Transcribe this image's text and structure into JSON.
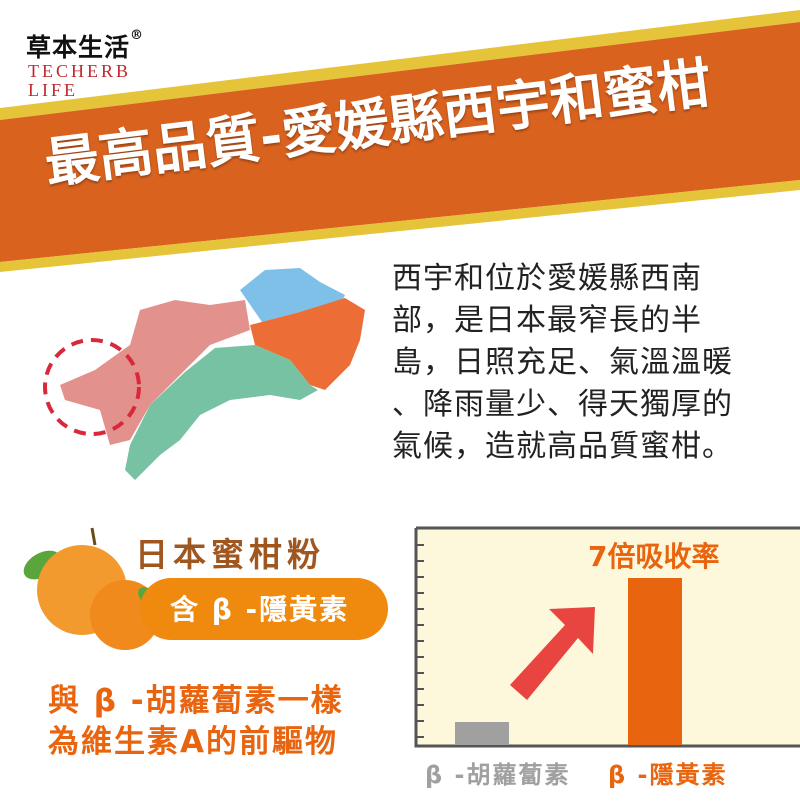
{
  "logo": {
    "chinese": "草本生活",
    "registered": "®",
    "english_line1": "TECHERB",
    "english_line2": "LIFE"
  },
  "banner": {
    "title": "最高品質-愛媛縣西宇和蜜柑",
    "color": "#d9621f",
    "border_color": "#e6c43a"
  },
  "description": [
    "西宇和位於愛媛縣西南",
    "部，是日本最窄長的半",
    "島，日照充足、氣溫溫暖",
    "、降雨量少、得天獨厚的",
    "氣候，造就高品質蜜柑。"
  ],
  "product": {
    "title": "日本蜜柑粉",
    "pill": "含 β -隱黃素",
    "line1": "與 β -胡蘿蔔素一樣",
    "line2": "為維生素A的前驅物"
  },
  "chart_data": {
    "type": "bar",
    "categories": [
      "β -胡蘿蔔素",
      "β -隱黃素"
    ],
    "values": [
      1,
      7
    ],
    "colors": [
      "#a0a0a0",
      "#e9640e"
    ],
    "annotation": "7倍吸收率",
    "grid": false
  }
}
